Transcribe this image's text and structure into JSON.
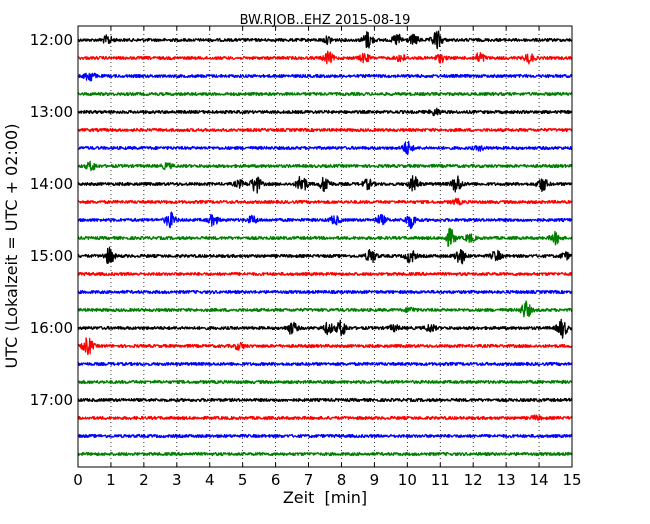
{
  "chart_data": {
    "type": "line",
    "title": "BW.RJOB..EHZ 2015-08-19",
    "xlabel": "Zeit  [min]",
    "ylabel": "UTC (Lokalzeit = UTC + 02:00)",
    "xlim": [
      0,
      15
    ],
    "x_ticks": [
      0,
      1,
      2,
      3,
      4,
      5,
      6,
      7,
      8,
      9,
      10,
      11,
      12,
      13,
      14,
      15
    ],
    "y_tick_labels": [
      "12:00",
      "13:00",
      "14:00",
      "15:00",
      "16:00",
      "17:00"
    ],
    "y_tick_interval_rows": 4,
    "row_interval_minutes": 15,
    "start_time": "12:00",
    "colors": [
      "#000000",
      "#ff0000",
      "#0000ff",
      "#008000"
    ],
    "grid": "vertical dotted lines at each minute",
    "rows": [
      {
        "time": "12:00",
        "events": [
          {
            "t": 0.9,
            "a": 0.45
          },
          {
            "t": 7.6,
            "a": 0.35
          },
          {
            "t": 8.8,
            "a": 0.9
          },
          {
            "t": 9.7,
            "a": 0.6
          },
          {
            "t": 10.2,
            "a": 0.5
          },
          {
            "t": 10.9,
            "a": 1.0
          }
        ]
      },
      {
        "time": "12:15",
        "events": [
          {
            "t": 7.6,
            "a": 0.6
          },
          {
            "t": 8.7,
            "a": 0.45
          },
          {
            "t": 9.8,
            "a": 0.4
          },
          {
            "t": 11.0,
            "a": 0.4
          },
          {
            "t": 12.2,
            "a": 0.55
          },
          {
            "t": 13.7,
            "a": 0.5
          }
        ]
      },
      {
        "time": "12:30",
        "events": [
          {
            "t": 0.35,
            "a": 0.55
          }
        ]
      },
      {
        "time": "12:45",
        "events": []
      },
      {
        "time": "13:00",
        "events": [
          {
            "t": 10.85,
            "a": 0.35
          }
        ]
      },
      {
        "time": "13:15",
        "events": []
      },
      {
        "time": "13:30",
        "events": [
          {
            "t": 10.0,
            "a": 0.7
          },
          {
            "t": 12.2,
            "a": 0.2
          }
        ]
      },
      {
        "time": "13:45",
        "events": [
          {
            "t": 0.4,
            "a": 0.45
          },
          {
            "t": 2.7,
            "a": 0.3
          }
        ]
      },
      {
        "time": "14:00",
        "events": [
          {
            "t": 4.9,
            "a": 0.35
          },
          {
            "t": 5.4,
            "a": 0.95
          },
          {
            "t": 6.8,
            "a": 1.0
          },
          {
            "t": 7.5,
            "a": 0.85
          },
          {
            "t": 8.8,
            "a": 0.5
          },
          {
            "t": 10.2,
            "a": 0.85
          },
          {
            "t": 11.5,
            "a": 0.95
          },
          {
            "t": 14.1,
            "a": 0.75
          }
        ]
      },
      {
        "time": "14:15",
        "events": [
          {
            "t": 11.5,
            "a": 0.25
          }
        ]
      },
      {
        "time": "14:30",
        "events": [
          {
            "t": 2.8,
            "a": 0.8
          },
          {
            "t": 4.1,
            "a": 0.55
          },
          {
            "t": 5.3,
            "a": 0.4
          },
          {
            "t": 7.8,
            "a": 0.45
          },
          {
            "t": 9.2,
            "a": 0.5
          },
          {
            "t": 10.1,
            "a": 0.8
          }
        ]
      },
      {
        "time": "14:45",
        "events": [
          {
            "t": 11.3,
            "a": 0.95
          },
          {
            "t": 11.9,
            "a": 0.4
          },
          {
            "t": 14.5,
            "a": 0.6
          }
        ]
      },
      {
        "time": "15:00",
        "events": [
          {
            "t": 0.95,
            "a": 0.85
          },
          {
            "t": 8.9,
            "a": 0.75
          },
          {
            "t": 10.1,
            "a": 0.7
          },
          {
            "t": 11.6,
            "a": 0.9
          },
          {
            "t": 12.7,
            "a": 0.55
          },
          {
            "t": 14.8,
            "a": 0.35
          }
        ]
      },
      {
        "time": "15:15",
        "events": []
      },
      {
        "time": "15:30",
        "events": []
      },
      {
        "time": "15:45",
        "events": [
          {
            "t": 10.1,
            "a": 0.25
          },
          {
            "t": 13.6,
            "a": 0.9
          }
        ]
      },
      {
        "time": "16:00",
        "events": [
          {
            "t": 6.5,
            "a": 0.65
          },
          {
            "t": 7.6,
            "a": 0.6
          },
          {
            "t": 8.0,
            "a": 0.85
          },
          {
            "t": 9.6,
            "a": 0.3
          },
          {
            "t": 10.7,
            "a": 0.4
          },
          {
            "t": 14.7,
            "a": 1.0
          }
        ]
      },
      {
        "time": "16:15",
        "events": [
          {
            "t": 0.3,
            "a": 0.9
          },
          {
            "t": 4.9,
            "a": 0.35
          }
        ]
      },
      {
        "time": "16:30",
        "events": []
      },
      {
        "time": "16:45",
        "events": []
      },
      {
        "time": "17:00",
        "events": []
      },
      {
        "time": "17:15",
        "events": [
          {
            "t": 13.9,
            "a": 0.2
          }
        ]
      },
      {
        "time": "17:30",
        "events": []
      },
      {
        "time": "17:45",
        "events": []
      }
    ]
  }
}
